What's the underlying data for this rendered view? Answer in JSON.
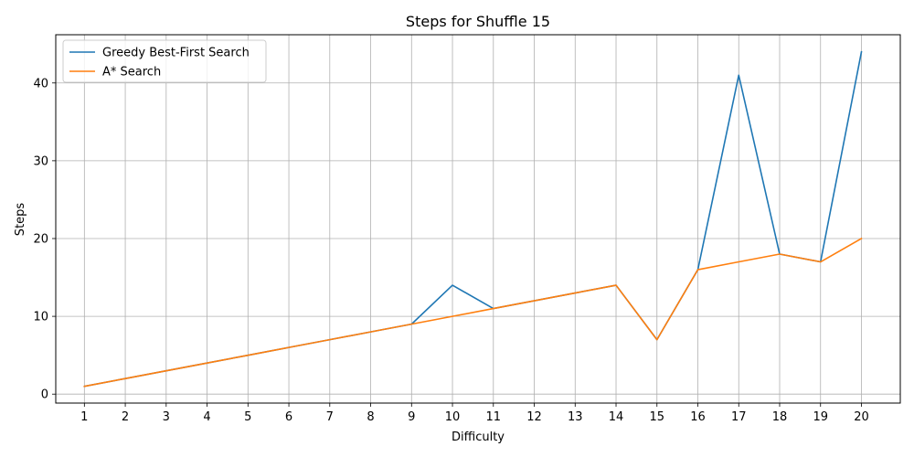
{
  "chart_data": {
    "type": "line",
    "title": "Steps for Shuffle 15",
    "xlabel": "Difficulty",
    "ylabel": "Steps",
    "x": [
      1,
      2,
      3,
      4,
      5,
      6,
      7,
      8,
      9,
      10,
      11,
      12,
      13,
      14,
      15,
      16,
      17,
      18,
      19,
      20
    ],
    "xlim": [
      0.3,
      20.95
    ],
    "ylim": [
      -1.15,
      46.2
    ],
    "yticks": [
      0,
      10,
      20,
      30,
      40
    ],
    "grid": true,
    "legend_position": "upper-left",
    "series": [
      {
        "name": "Greedy Best-First Search",
        "color": "#1f77b4",
        "values": [
          1,
          2,
          3,
          4,
          5,
          6,
          7,
          8,
          9,
          14,
          11,
          12,
          13,
          14,
          7,
          16,
          41,
          18,
          17,
          44
        ]
      },
      {
        "name": "A* Search",
        "color": "#ff7f0e",
        "values": [
          1,
          2,
          3,
          4,
          5,
          6,
          7,
          8,
          9,
          10,
          11,
          12,
          13,
          14,
          7,
          16,
          17,
          18,
          17,
          20
        ]
      }
    ]
  }
}
